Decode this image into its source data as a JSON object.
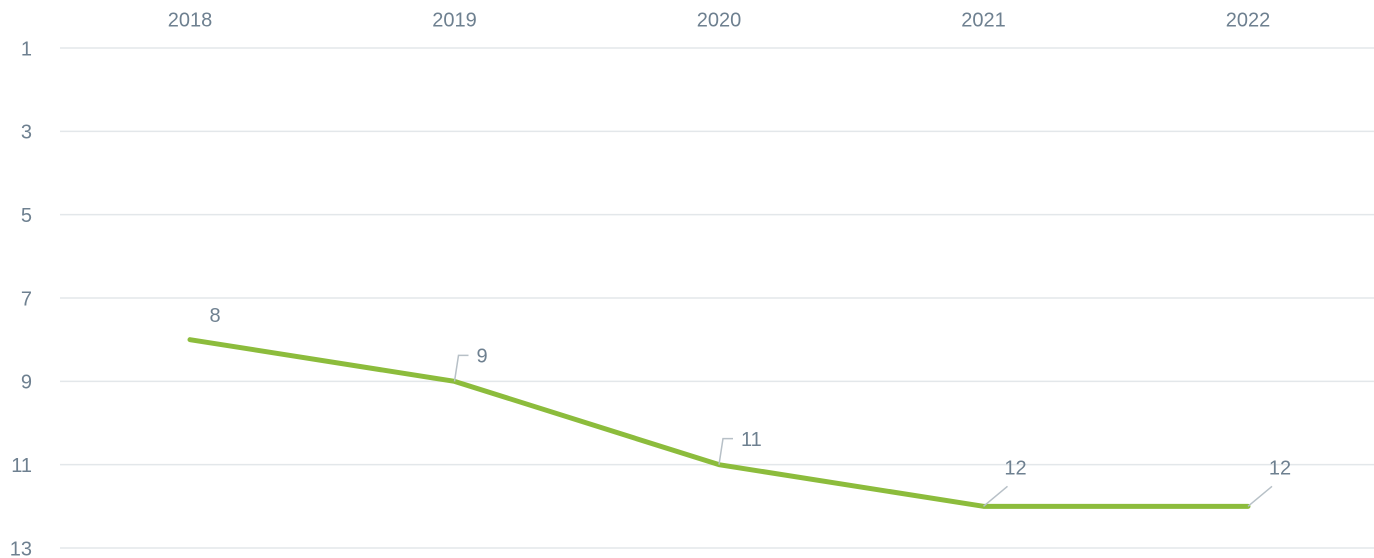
{
  "chart_data": {
    "type": "line",
    "categories": [
      "2018",
      "2019",
      "2020",
      "2021",
      "2022"
    ],
    "series": [
      {
        "color": "#8cbc3c",
        "values": [
          8,
          9,
          11,
          12,
          12
        ]
      }
    ],
    "ylim": [
      1,
      13
    ],
    "yticks": [
      1,
      3,
      5,
      7,
      9,
      11,
      13
    ],
    "y_reversed": true,
    "grid": true
  }
}
